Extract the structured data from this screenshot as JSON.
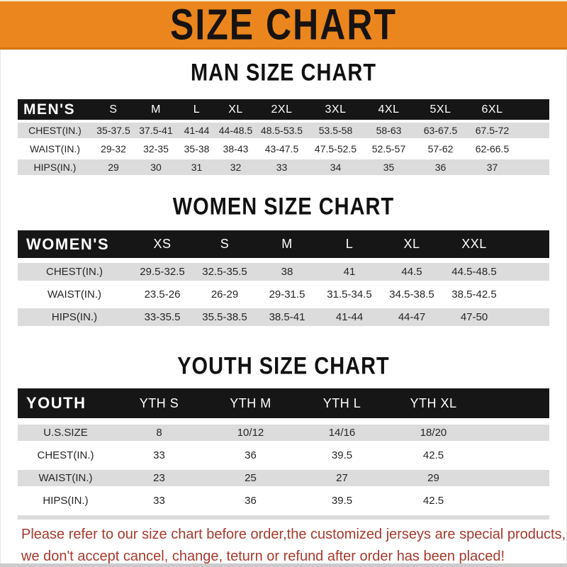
{
  "banner": {
    "title": "SIZE CHART"
  },
  "sections": [
    {
      "id": "men",
      "title": "MAN SIZE CHART",
      "header_label": "MEN'S",
      "columns": [
        "S",
        "M",
        "L",
        "XL",
        "2XL",
        "3XL",
        "4XL",
        "5XL",
        "6XL"
      ],
      "rows": [
        {
          "label": "CHEST(IN.)",
          "values": [
            "35-37.5",
            "37.5-41",
            "41-44",
            "44-48.5",
            "48.5-53.5",
            "53.5-58",
            "58-63",
            "63-67.5",
            "67.5-72"
          ]
        },
        {
          "label": "WAIST(IN.)",
          "values": [
            "29-32",
            "32-35",
            "35-38",
            "38-43",
            "43-47.5",
            "47.5-52.5",
            "52.5-57",
            "57-62",
            "62-66.5"
          ]
        },
        {
          "label": "HIPS(IN.)",
          "values": [
            "29",
            "30",
            "31",
            "32",
            "33",
            "34",
            "35",
            "36",
            "37"
          ]
        }
      ]
    },
    {
      "id": "women",
      "title": "WOMEN SIZE CHART",
      "header_label": "WOMEN'S",
      "columns": [
        "XS",
        "S",
        "M",
        "L",
        "XL",
        "XXL"
      ],
      "rows": [
        {
          "label": "CHEST(IN.)",
          "values": [
            "29.5-32.5",
            "32.5-35.5",
            "38",
            "41",
            "44.5",
            "44.5-48.5"
          ]
        },
        {
          "label": "WAIST(IN.)",
          "values": [
            "23.5-26",
            "26-29",
            "29-31.5",
            "31.5-34.5",
            "34.5-38.5",
            "38.5-42.5"
          ]
        },
        {
          "label": "HIPS(IN.)",
          "values": [
            "33-35.5",
            "35.5-38.5",
            "38.5-41",
            "41-44",
            "44-47",
            "47-50"
          ]
        }
      ]
    },
    {
      "id": "youth",
      "title": "YOUTH SIZE CHART",
      "header_label": "YOUTH",
      "columns": [
        "YTH S",
        "YTH M",
        "YTH L",
        "YTH XL"
      ],
      "rows": [
        {
          "label": "U.S.SIZE",
          "values": [
            "8",
            "10/12",
            "14/16",
            "18/20"
          ]
        },
        {
          "label": "CHEST(IN.)",
          "values": [
            "33",
            "36",
            "39.5",
            "42.5"
          ]
        },
        {
          "label": "WAIST(IN.)",
          "values": [
            "23",
            "25",
            "27",
            "29"
          ]
        },
        {
          "label": "HIPS(IN.)",
          "values": [
            "33",
            "36",
            "39.5",
            "42.5"
          ]
        }
      ]
    }
  ],
  "note": {
    "line1": "Please refer to our size chart before order,the customized jerseys are special products,",
    "line2": "we don't accept cancel, change, teturn or refund after order has been placed!"
  },
  "colors": {
    "banner_orange": "#EA861D",
    "header_bar_black": "#161616",
    "row_gray": "#DCDCDC",
    "note_red": "#A8392C"
  }
}
